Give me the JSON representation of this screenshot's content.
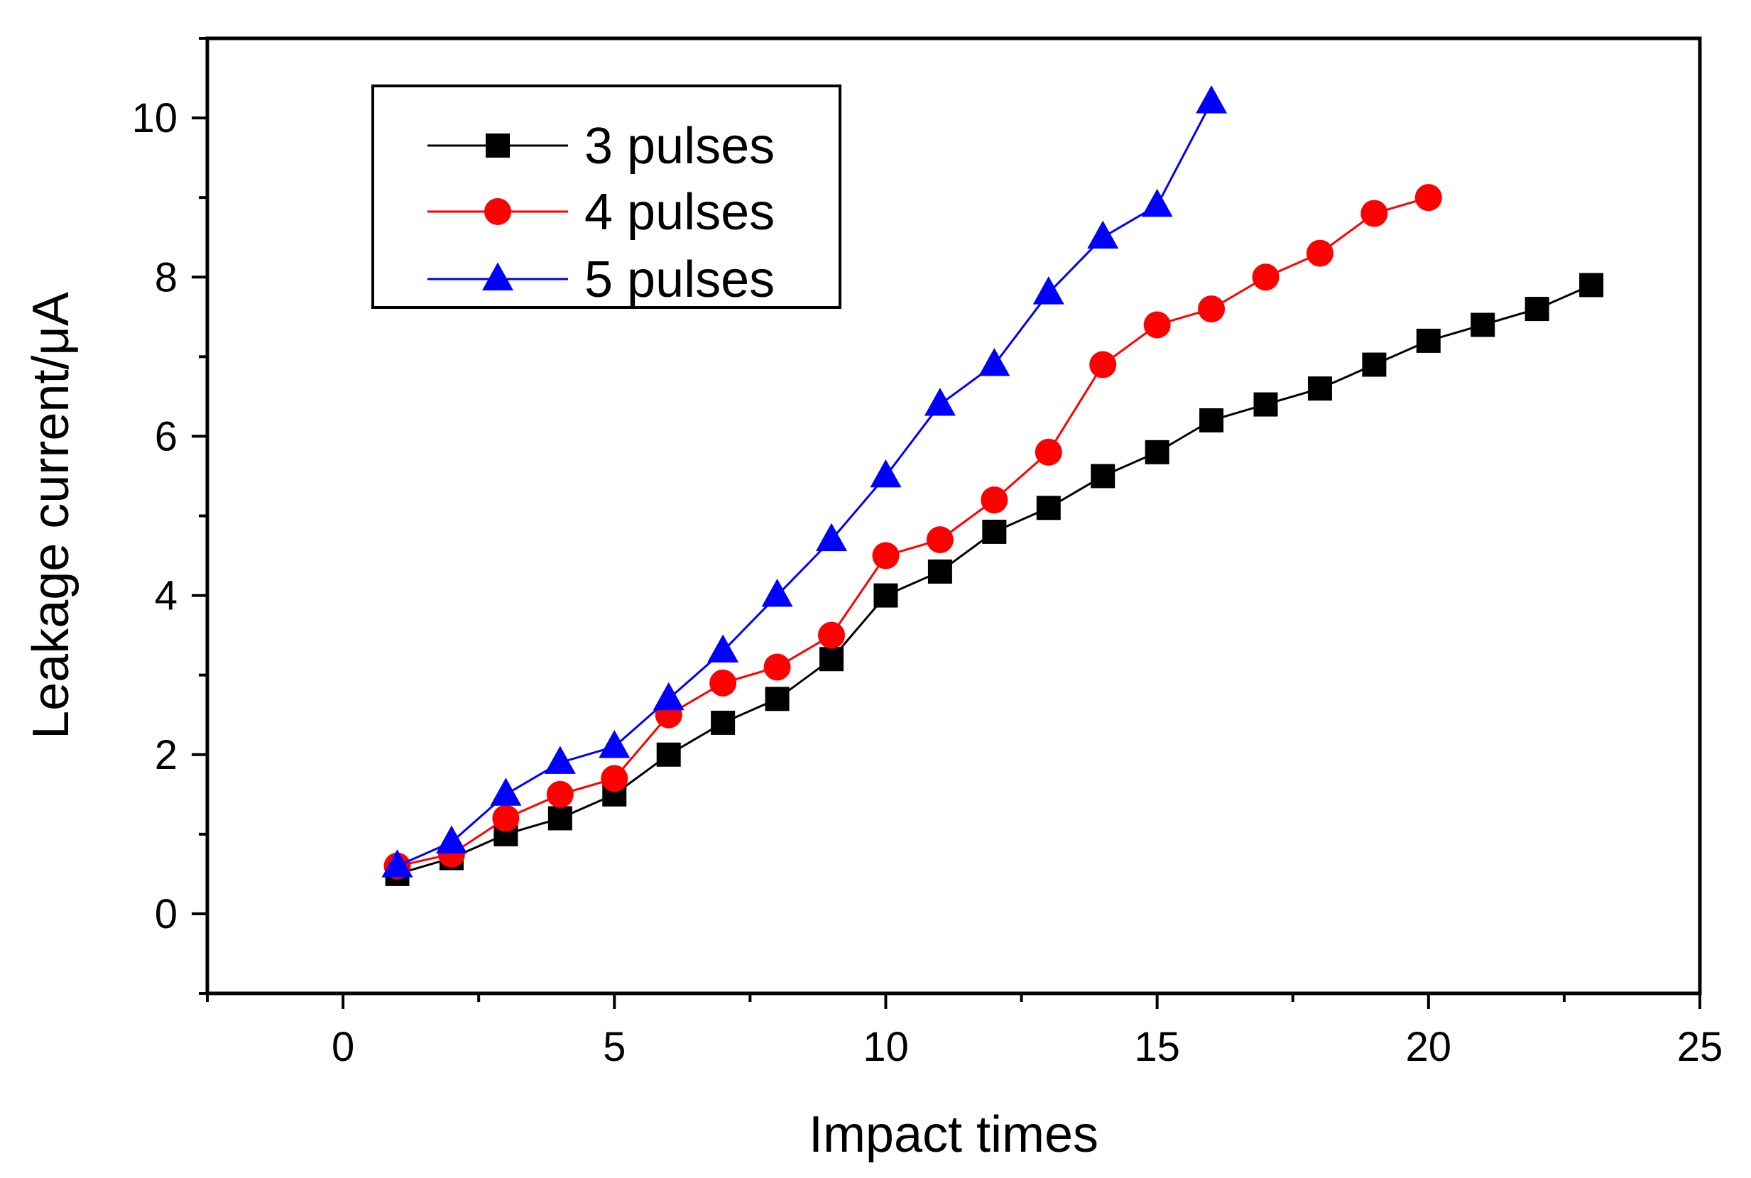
{
  "chart_data": {
    "type": "line",
    "title": "",
    "xlabel": "Impact times",
    "ylabel": "Leakage current/μA",
    "xlim": [
      -2.5,
      25
    ],
    "ylim": [
      -1,
      11
    ],
    "xticks": [
      0,
      5,
      10,
      15,
      20,
      25
    ],
    "yticks": [
      0,
      2,
      4,
      6,
      8,
      10
    ],
    "grid": false,
    "legend_position": "top-left",
    "series": [
      {
        "name": "3 pulses",
        "color": "#000000",
        "marker": "square",
        "x": [
          1,
          2,
          3,
          4,
          5,
          6,
          7,
          8,
          9,
          10,
          11,
          12,
          13,
          14,
          15,
          16,
          17,
          18,
          19,
          20,
          21,
          22,
          23
        ],
        "y": [
          0.5,
          0.7,
          1.0,
          1.2,
          1.5,
          2.0,
          2.4,
          2.7,
          3.2,
          4.0,
          4.3,
          4.8,
          5.1,
          5.5,
          5.8,
          6.2,
          6.4,
          6.6,
          6.9,
          7.2,
          7.4,
          7.6,
          7.9
        ]
      },
      {
        "name": "4 pulses",
        "color": "#ff0000",
        "marker": "circle",
        "x": [
          1,
          2,
          3,
          4,
          5,
          6,
          7,
          8,
          9,
          10,
          11,
          12,
          13,
          14,
          15,
          16,
          17,
          18,
          19,
          20
        ],
        "y": [
          0.6,
          0.75,
          1.2,
          1.5,
          1.7,
          2.5,
          2.9,
          3.1,
          3.5,
          4.5,
          4.7,
          5.2,
          5.8,
          6.9,
          7.4,
          7.6,
          8.0,
          8.3,
          8.8,
          9.0
        ]
      },
      {
        "name": "5 pulses",
        "color": "#0000ff",
        "marker": "triangle",
        "x": [
          1,
          2,
          3,
          4,
          5,
          6,
          7,
          8,
          9,
          10,
          11,
          12,
          13,
          14,
          15,
          16
        ],
        "y": [
          0.6,
          0.9,
          1.5,
          1.9,
          2.1,
          2.7,
          3.3,
          4.0,
          4.7,
          5.5,
          6.4,
          6.9,
          7.8,
          8.5,
          8.9,
          10.2
        ]
      }
    ]
  }
}
